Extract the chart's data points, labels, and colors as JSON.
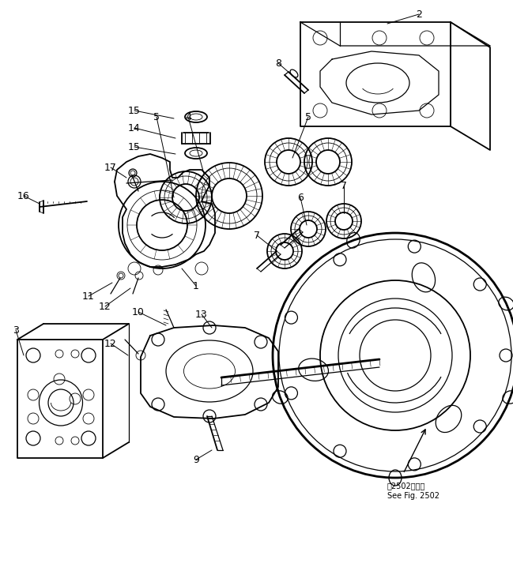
{
  "bg_color": "#ffffff",
  "line_color": "#000000",
  "fig_width": 6.49,
  "fig_height": 7.37,
  "dpi": 100,
  "annotation_text_jp": "第2502図参照",
  "annotation_text_en": "See Fig. 2502"
}
